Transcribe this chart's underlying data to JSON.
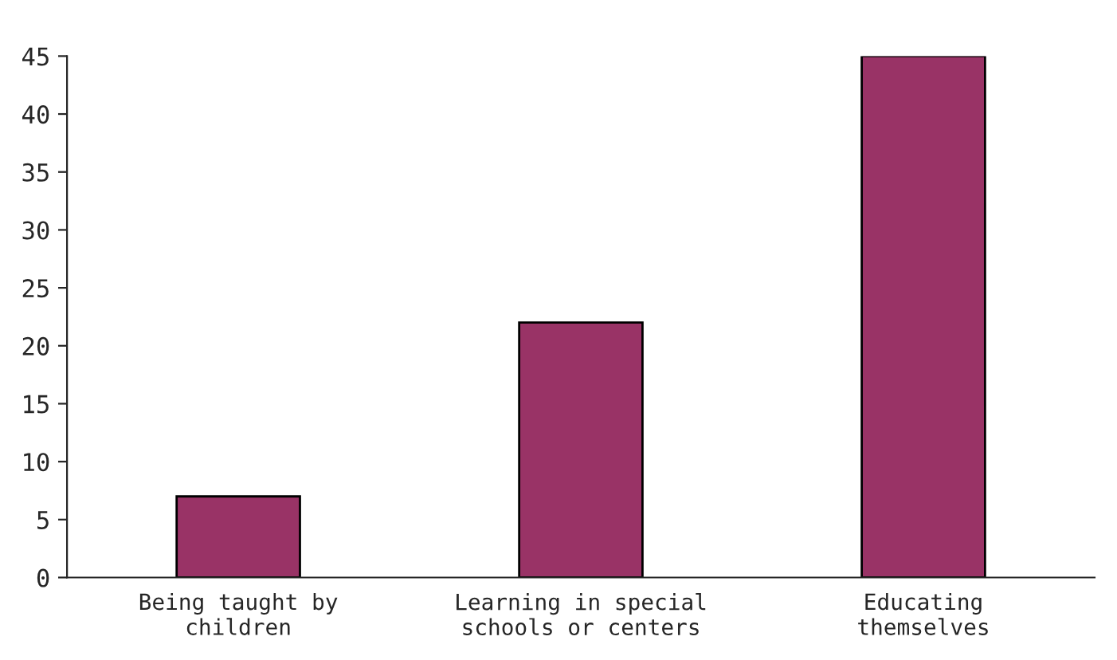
{
  "chart_data": {
    "type": "bar",
    "categories": [
      "Being taught by\nchildren",
      "Learning in special\nschools or centers",
      "Educating\nthemselves"
    ],
    "values": [
      7,
      22,
      45
    ],
    "color": "#993366",
    "ylim": [
      0,
      45
    ],
    "yticks": [
      0,
      5,
      10,
      15,
      20,
      25,
      30,
      35,
      40,
      45
    ],
    "grid": false,
    "legend": false
  }
}
